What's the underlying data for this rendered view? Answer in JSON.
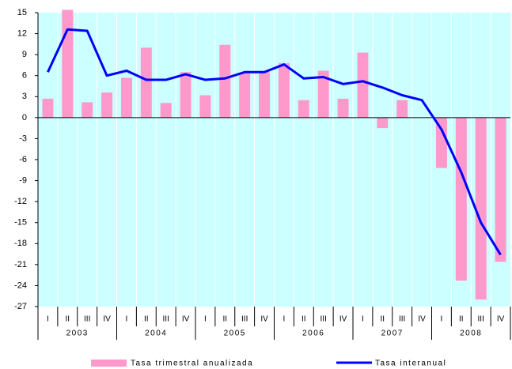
{
  "chart_data": {
    "type": "bar_line",
    "categories": [
      "I",
      "II",
      "III",
      "IV",
      "I",
      "II",
      "III",
      "IV",
      "I",
      "II",
      "III",
      "IV",
      "I",
      "II",
      "III",
      "IV",
      "I",
      "II",
      "III",
      "IV",
      "I",
      "II",
      "III",
      "IV"
    ],
    "years": [
      "2003",
      "2004",
      "2005",
      "2006",
      "2007",
      "2008"
    ],
    "series": [
      {
        "name": "Tasa trimestral anualizada",
        "type": "bar",
        "color": "#ff99cc",
        "values": [
          2.7,
          15.4,
          2.2,
          3.6,
          5.7,
          10.0,
          2.1,
          6.5,
          3.2,
          10.4,
          6.4,
          6.5,
          7.8,
          2.5,
          6.7,
          2.7,
          9.3,
          -1.5,
          2.5,
          0,
          -7.2,
          -23.3,
          -26.0,
          -20.6
        ]
      },
      {
        "name": "Tasa interanual",
        "type": "line",
        "color": "#0000ff",
        "values": [
          6.5,
          12.6,
          12.4,
          6.0,
          6.7,
          5.4,
          5.4,
          6.2,
          5.4,
          5.6,
          6.5,
          6.5,
          7.6,
          5.6,
          5.8,
          4.8,
          5.2,
          4.3,
          3.2,
          2.5,
          -1.7,
          -7.8,
          -15.0,
          -19.6
        ]
      }
    ],
    "ylim": [
      -27,
      15
    ],
    "yticks": [
      15,
      12,
      9,
      6,
      3,
      0,
      -3,
      -6,
      -9,
      -12,
      -15,
      -18,
      -21,
      -24,
      -27
    ],
    "background": "#ccffff"
  }
}
